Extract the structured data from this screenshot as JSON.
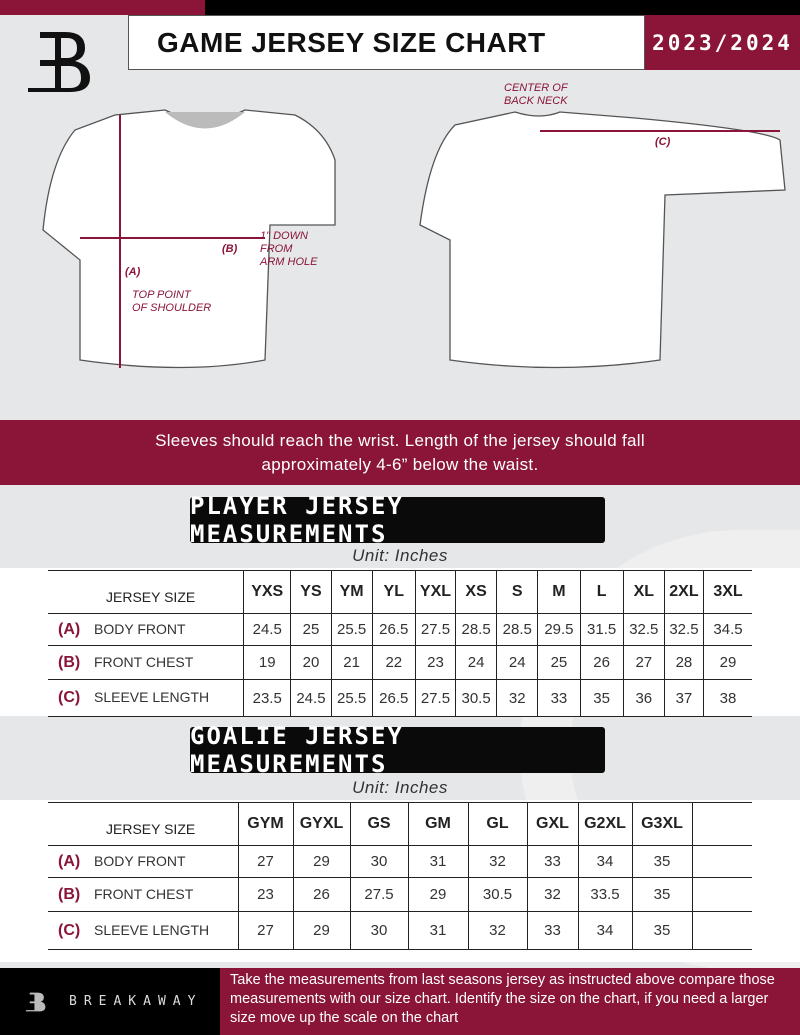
{
  "header": {
    "title": "GAME JERSEY SIZE CHART",
    "season": "2023/2024"
  },
  "diagram": {
    "front_notes": {
      "a_marker": "(A)",
      "a_label": "TOP POINT\nOF SHOULDER",
      "b_marker": "(B)",
      "b_label": "1\" DOWN\nFROM\nARM HOLE"
    },
    "back_notes": {
      "c_marker": "(C)",
      "c_label": "CENTER OF\nBACK NECK"
    }
  },
  "instruction_band": {
    "line1": "Sleeves should reach the wrist. Length of the jersey should fall",
    "line2": "approximately 4-6” below the waist."
  },
  "player": {
    "title": "PLAYER JERSEY MEASUREMENTS",
    "unit": "Unit: Inches",
    "size_header": "JERSEY SIZE",
    "sizes": [
      "YXS",
      "YS",
      "YM",
      "YL",
      "YXL",
      "XS",
      "S",
      "M",
      "L",
      "XL",
      "2XL",
      "3XL"
    ],
    "rows": [
      {
        "marker": "(A)",
        "label": "BODY FRONT",
        "values": [
          "24.5",
          "25",
          "25.5",
          "26.5",
          "27.5",
          "28.5",
          "28.5",
          "29.5",
          "31.5",
          "32.5",
          "32.5",
          "34.5"
        ]
      },
      {
        "marker": "(B)",
        "label": "FRONT CHEST",
        "values": [
          "19",
          "20",
          "21",
          "22",
          "23",
          "24",
          "24",
          "25",
          "26",
          "27",
          "28",
          "29"
        ]
      },
      {
        "marker": "(C)",
        "label": "SLEEVE LENGTH",
        "values": [
          "23.5",
          "24.5",
          "25.5",
          "26.5",
          "27.5",
          "30.5",
          "32",
          "33",
          "35",
          "36",
          "37",
          "38"
        ]
      }
    ]
  },
  "goalie": {
    "title": "GOALIE JERSEY MEASUREMENTS",
    "unit": "Unit: Inches",
    "size_header": "JERSEY SIZE",
    "sizes": [
      "GYM",
      "GYXL",
      "GS",
      "GM",
      "GL",
      "GXL",
      "G2XL",
      "G3XL",
      ""
    ],
    "rows": [
      {
        "marker": "(A)",
        "label": "BODY FRONT",
        "values": [
          "27",
          "29",
          "30",
          "31",
          "32",
          "33",
          "34",
          "35",
          ""
        ]
      },
      {
        "marker": "(B)",
        "label": "FRONT CHEST",
        "values": [
          "23",
          "26",
          "27.5",
          "29",
          "30.5",
          "32",
          "33.5",
          "35",
          ""
        ]
      },
      {
        "marker": "(C)",
        "label": "SLEEVE LENGTH",
        "values": [
          "27",
          "29",
          "30",
          "31",
          "32",
          "33",
          "34",
          "35",
          ""
        ]
      }
    ]
  },
  "footer": {
    "brand": "BREAKAWAY",
    "text": "Take the measurements from last seasons jersey as instructed above compare those measurements  with our size chart. Identify the size on the chart, if you need a larger size move up the scale on the chart"
  },
  "colors": {
    "accent": "#8a1538",
    "dark": "#000000",
    "background": "#e6e7e8"
  }
}
